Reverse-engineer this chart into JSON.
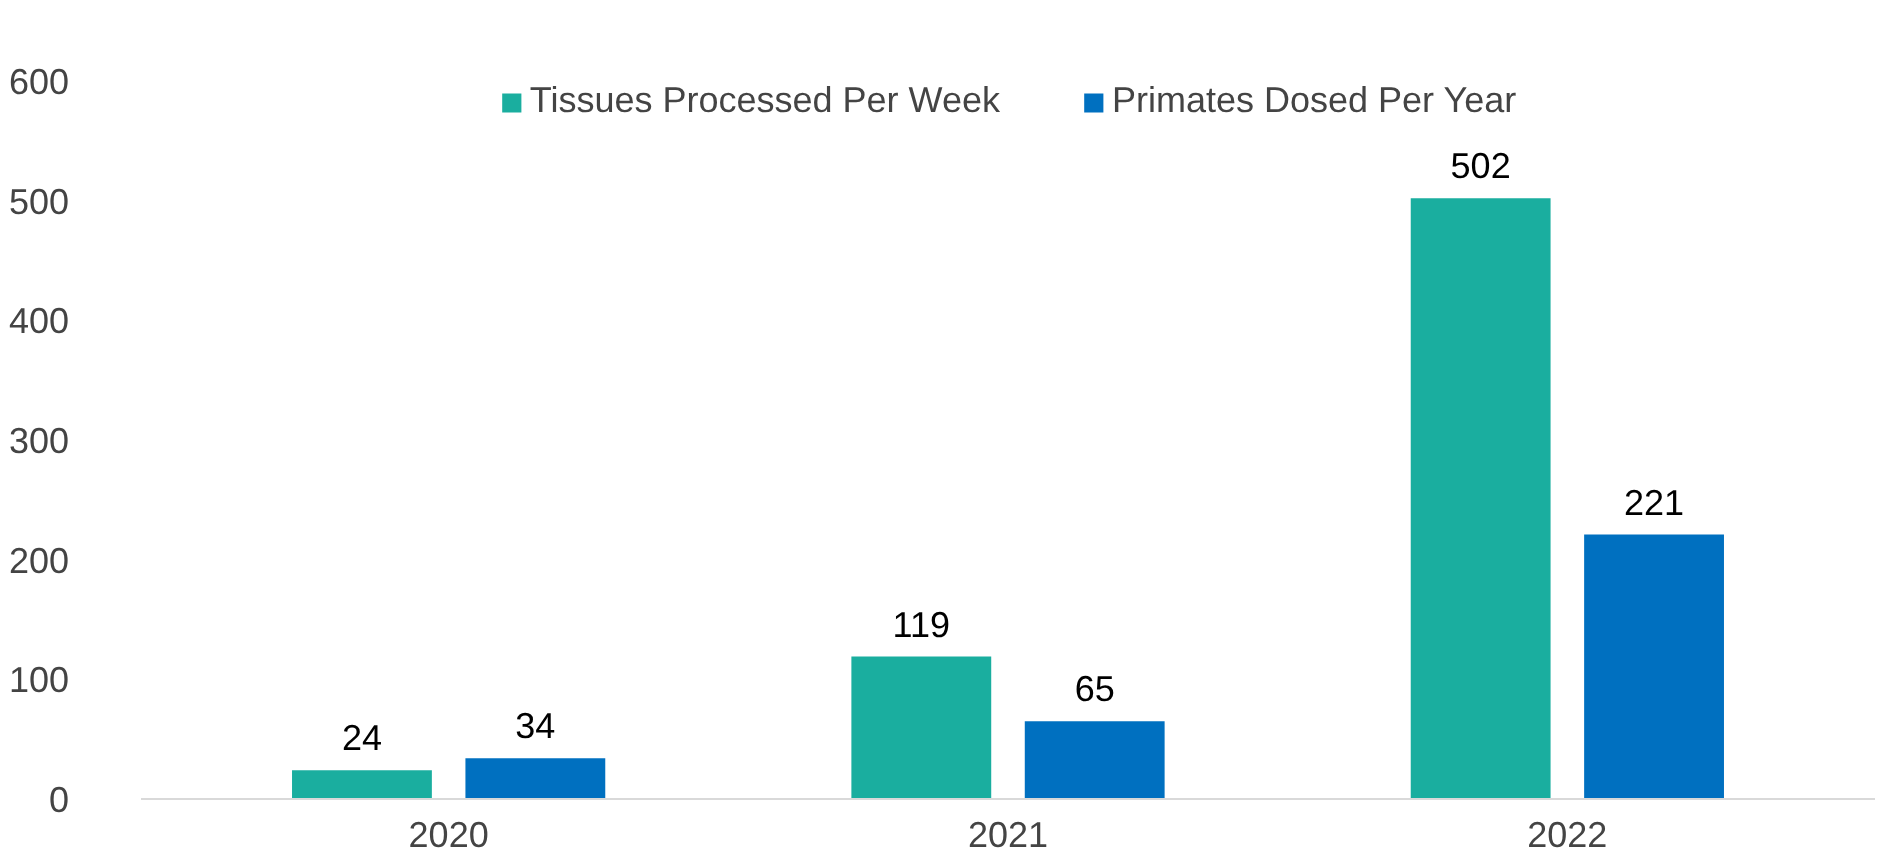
{
  "chart_data": {
    "type": "bar",
    "categories": [
      "2020",
      "2021",
      "2022"
    ],
    "series": [
      {
        "name": "Tissues Processed Per Week",
        "color": "#1aae9f",
        "values": [
          24,
          119,
          502
        ]
      },
      {
        "name": "Primates Dosed Per Year",
        "color": "#0070c0",
        "values": [
          34,
          65,
          221
        ]
      }
    ],
    "ylim": [
      0,
      600
    ],
    "yticks": [
      0,
      100,
      200,
      300,
      400,
      500,
      600
    ],
    "data_labels": true,
    "legend": "top",
    "grid": false
  }
}
